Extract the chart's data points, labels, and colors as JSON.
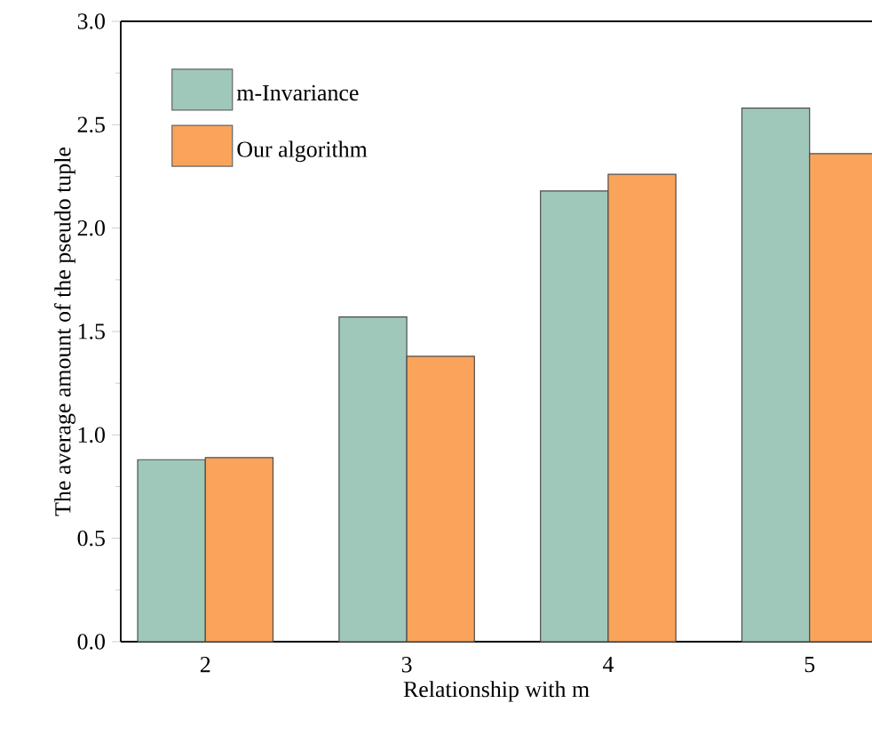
{
  "chart_data": {
    "type": "bar",
    "xlabel": "Relationship with m",
    "ylabel": "The average amount of the pseudo tuple",
    "categories": [
      "2",
      "3",
      "4",
      "5"
    ],
    "series": [
      {
        "name": "m-Invariance",
        "color": "#9fc8ba",
        "values": [
          0.88,
          1.57,
          2.18,
          2.58
        ]
      },
      {
        "name": "Our algorithm",
        "color": "#f9a45a",
        "values": [
          0.89,
          1.38,
          2.26,
          2.36
        ]
      }
    ],
    "ylim": [
      0,
      3.0
    ],
    "yticks": [
      {
        "value": 0,
        "label": "0.0"
      },
      {
        "value": 0.5,
        "label": "0.5"
      },
      {
        "value": 1.0,
        "label": "1.0"
      },
      {
        "value": 1.5,
        "label": "1.5"
      },
      {
        "value": 2.0,
        "label": "2.0"
      },
      {
        "value": 2.5,
        "label": "2.5"
      },
      {
        "value": 3.0,
        "label": "3.0"
      }
    ],
    "legend": "top left"
  }
}
